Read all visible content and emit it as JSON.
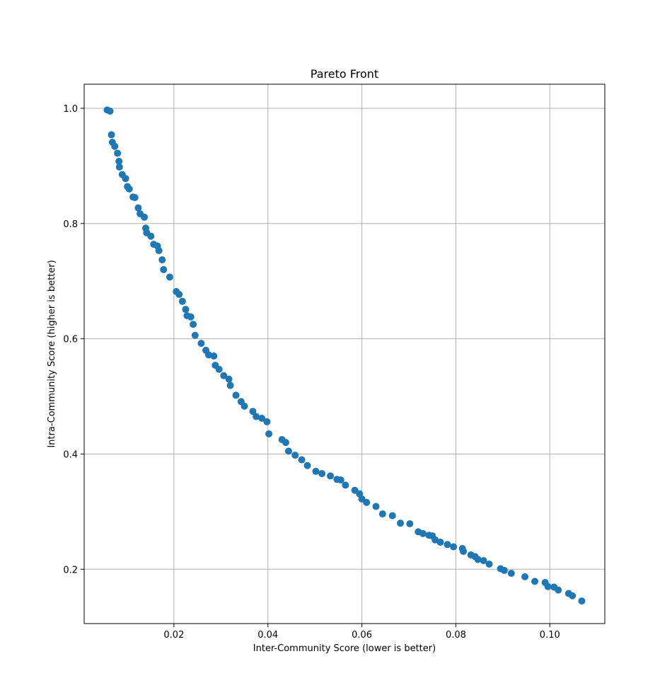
{
  "chart_data": {
    "type": "scatter",
    "title": "Pareto Front",
    "xlabel": "Inter-Community Score (lower is better)",
    "ylabel": "Intra-Community Score (higher is better)",
    "xlim": [
      0.0009,
      0.1117
    ],
    "ylim": [
      0.1058,
      1.0417
    ],
    "xticks": [
      0.02,
      0.04,
      0.06,
      0.08,
      0.1
    ],
    "xtick_labels": [
      "0.02",
      "0.04",
      "0.06",
      "0.08",
      "0.10"
    ],
    "yticks": [
      0.2,
      0.4,
      0.6,
      0.8,
      1.0
    ],
    "ytick_labels": [
      "0.2",
      "0.4",
      "0.6",
      "0.8",
      "1.0"
    ],
    "grid": true,
    "marker_color": "#1f77b4",
    "points": [
      [
        0.0058,
        0.997
      ],
      [
        0.0064,
        0.995
      ],
      [
        0.0067,
        0.954
      ],
      [
        0.0069,
        0.941
      ],
      [
        0.0074,
        0.934
      ],
      [
        0.008,
        0.922
      ],
      [
        0.0083,
        0.908
      ],
      [
        0.0084,
        0.898
      ],
      [
        0.009,
        0.885
      ],
      [
        0.0097,
        0.878
      ],
      [
        0.0101,
        0.864
      ],
      [
        0.0105,
        0.86
      ],
      [
        0.0113,
        0.846
      ],
      [
        0.0117,
        0.845
      ],
      [
        0.0124,
        0.827
      ],
      [
        0.0128,
        0.817
      ],
      [
        0.0137,
        0.811
      ],
      [
        0.014,
        0.792
      ],
      [
        0.0142,
        0.784
      ],
      [
        0.0151,
        0.778
      ],
      [
        0.0157,
        0.764
      ],
      [
        0.0165,
        0.761
      ],
      [
        0.0168,
        0.753
      ],
      [
        0.0175,
        0.737
      ],
      [
        0.0178,
        0.72
      ],
      [
        0.0191,
        0.707
      ],
      [
        0.0205,
        0.682
      ],
      [
        0.0211,
        0.677
      ],
      [
        0.0218,
        0.665
      ],
      [
        0.0225,
        0.651
      ],
      [
        0.0228,
        0.64
      ],
      [
        0.0236,
        0.638
      ],
      [
        0.0241,
        0.625
      ],
      [
        0.0245,
        0.606
      ],
      [
        0.0258,
        0.592
      ],
      [
        0.0268,
        0.58
      ],
      [
        0.0274,
        0.572
      ],
      [
        0.0285,
        0.57
      ],
      [
        0.0288,
        0.554
      ],
      [
        0.0296,
        0.547
      ],
      [
        0.0306,
        0.536
      ],
      [
        0.0317,
        0.53
      ],
      [
        0.032,
        0.519
      ],
      [
        0.0332,
        0.502
      ],
      [
        0.0343,
        0.491
      ],
      [
        0.035,
        0.483
      ],
      [
        0.0368,
        0.474
      ],
      [
        0.0375,
        0.465
      ],
      [
        0.0387,
        0.462
      ],
      [
        0.0398,
        0.456
      ],
      [
        0.0402,
        0.435
      ],
      [
        0.043,
        0.425
      ],
      [
        0.0438,
        0.42
      ],
      [
        0.0444,
        0.405
      ],
      [
        0.0458,
        0.398
      ],
      [
        0.0472,
        0.39
      ],
      [
        0.0484,
        0.38
      ],
      [
        0.0502,
        0.37
      ],
      [
        0.0515,
        0.366
      ],
      [
        0.0533,
        0.362
      ],
      [
        0.0547,
        0.356
      ],
      [
        0.0555,
        0.355
      ],
      [
        0.0565,
        0.346
      ],
      [
        0.0585,
        0.337
      ],
      [
        0.0595,
        0.331
      ],
      [
        0.06,
        0.322
      ],
      [
        0.061,
        0.316
      ],
      [
        0.063,
        0.309
      ],
      [
        0.0644,
        0.296
      ],
      [
        0.0665,
        0.293
      ],
      [
        0.0682,
        0.28
      ],
      [
        0.0702,
        0.279
      ],
      [
        0.072,
        0.265
      ],
      [
        0.073,
        0.262
      ],
      [
        0.0743,
        0.259
      ],
      [
        0.075,
        0.258
      ],
      [
        0.0756,
        0.251
      ],
      [
        0.0767,
        0.247
      ],
      [
        0.0782,
        0.243
      ],
      [
        0.0795,
        0.239
      ],
      [
        0.0814,
        0.236
      ],
      [
        0.0816,
        0.231
      ],
      [
        0.0832,
        0.225
      ],
      [
        0.0841,
        0.222
      ],
      [
        0.0847,
        0.217
      ],
      [
        0.0859,
        0.215
      ],
      [
        0.0871,
        0.209
      ],
      [
        0.0895,
        0.201
      ],
      [
        0.0903,
        0.198
      ],
      [
        0.0918,
        0.193
      ],
      [
        0.0947,
        0.187
      ],
      [
        0.0968,
        0.179
      ],
      [
        0.099,
        0.177
      ],
      [
        0.0996,
        0.17
      ],
      [
        0.1009,
        0.169
      ],
      [
        0.1018,
        0.164
      ],
      [
        0.104,
        0.158
      ],
      [
        0.1048,
        0.154
      ],
      [
        0.1068,
        0.145
      ]
    ]
  }
}
